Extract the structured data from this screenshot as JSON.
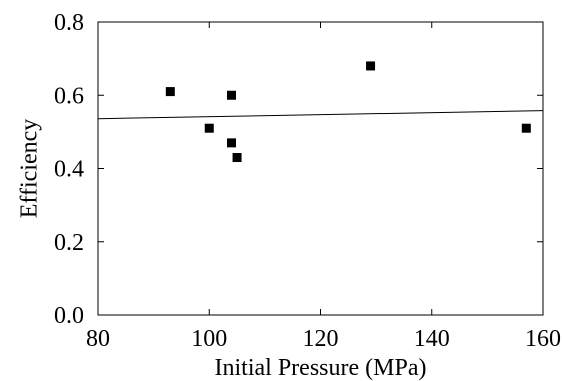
{
  "chart_data": {
    "type": "scatter",
    "title": "",
    "xlabel": "Initial Pressure (MPa)",
    "ylabel": "Efficiency",
    "xlim": [
      80,
      160
    ],
    "ylim": [
      0.0,
      0.8
    ],
    "x_ticks": [
      "80",
      "100",
      "120",
      "140",
      "160"
    ],
    "y_ticks": [
      "0.0",
      "0.2",
      "0.4",
      "0.6",
      "0.8"
    ],
    "grid": false,
    "series": [
      {
        "marker": "square",
        "color": "#000000",
        "points": [
          {
            "x": 93,
            "y": 0.61
          },
          {
            "x": 100,
            "y": 0.51
          },
          {
            "x": 104,
            "y": 0.6
          },
          {
            "x": 104,
            "y": 0.47
          },
          {
            "x": 105,
            "y": 0.43
          },
          {
            "x": 129,
            "y": 0.68
          },
          {
            "x": 157,
            "y": 0.51
          }
        ]
      }
    ],
    "fit_line": {
      "color": "#000000",
      "points": [
        {
          "x": 80,
          "y": 0.536
        },
        {
          "x": 160,
          "y": 0.558
        }
      ]
    }
  }
}
